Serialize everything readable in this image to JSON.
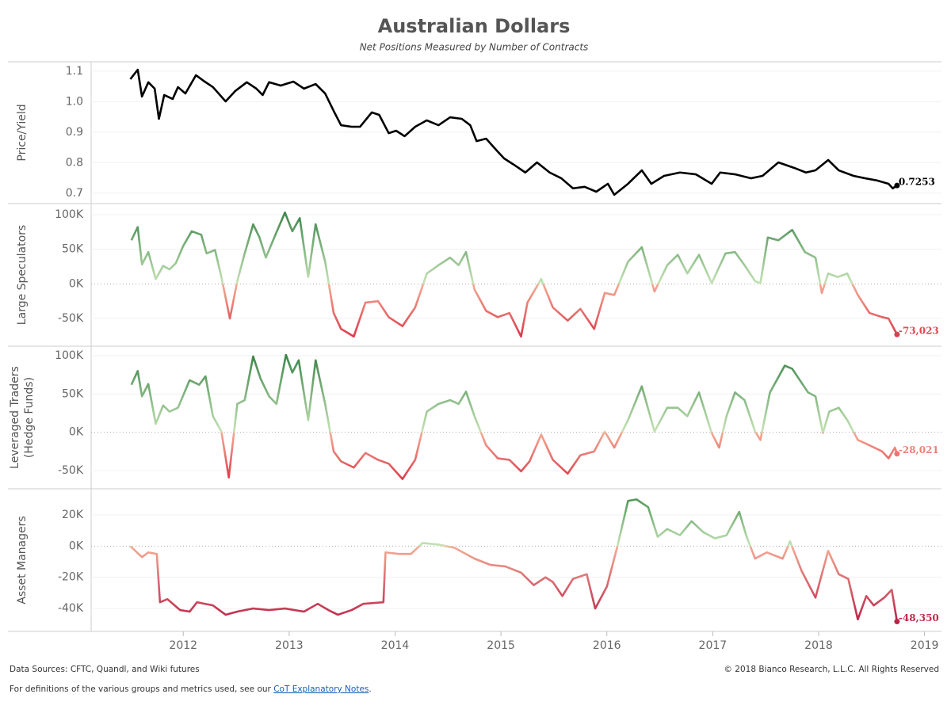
{
  "title": "Australian Dollars",
  "subtitle": "Net Positions Measured by Number of Contracts",
  "chart_data": [
    {
      "type": "line",
      "y_label": "Price/Yield",
      "xlim": [
        2011.13,
        2019.16
      ],
      "ylim": [
        0.666,
        1.131
      ],
      "yticks": [
        0.7,
        0.8,
        0.9,
        {
          "value": 1,
          "label": "1.0"
        },
        1.1
      ],
      "x": [
        2011.5,
        2011.57,
        2011.61,
        2011.67,
        2011.73,
        2011.77,
        2011.82,
        2011.9,
        2011.95,
        2012.02,
        2012.12,
        2012.19,
        2012.28,
        2012.4,
        2012.49,
        2012.6,
        2012.69,
        2012.75,
        2012.81,
        2012.92,
        2013.04,
        2013.14,
        2013.25,
        2013.34,
        2013.42,
        2013.49,
        2013.59,
        2013.67,
        2013.78,
        2013.85,
        2013.94,
        2014.01,
        2014.09,
        2014.19,
        2014.3,
        2014.41,
        2014.52,
        2014.63,
        2014.71,
        2014.77,
        2014.86,
        2014.96,
        2015.03,
        2015.12,
        2015.23,
        2015.34,
        2015.46,
        2015.57,
        2015.68,
        2015.79,
        2015.9,
        2016.01,
        2016.07,
        2016.2,
        2016.33,
        2016.42,
        2016.54,
        2016.69,
        2016.84,
        2016.99,
        2017.07,
        2017.21,
        2017.36,
        2017.47,
        2017.62,
        2017.77,
        2017.88,
        2017.97,
        2018.09,
        2018.19,
        2018.33,
        2018.44,
        2018.55,
        2018.66,
        2018.7,
        2018.74
      ],
      "series": [
        {
          "color": "#000000",
          "values": [
            1.074,
            1.105,
            1.017,
            1.064,
            1.043,
            0.944,
            1.022,
            1.009,
            1.048,
            1.027,
            1.087,
            1.069,
            1.048,
            1.001,
            1.035,
            1.064,
            1.043,
            1.022,
            1.064,
            1.053,
            1.066,
            1.043,
            1.058,
            1.027,
            0.97,
            0.923,
            0.918,
            0.918,
            0.965,
            0.957,
            0.897,
            0.905,
            0.887,
            0.918,
            0.939,
            0.923,
            0.949,
            0.944,
            0.923,
            0.871,
            0.879,
            0.84,
            0.814,
            0.794,
            0.768,
            0.801,
            0.768,
            0.749,
            0.716,
            0.721,
            0.705,
            0.731,
            0.695,
            0.731,
            0.775,
            0.731,
            0.757,
            0.768,
            0.762,
            0.731,
            0.768,
            0.762,
            0.749,
            0.757,
            0.801,
            0.783,
            0.768,
            0.775,
            0.809,
            0.775,
            0.757,
            0.749,
            0.742,
            0.731,
            0.716,
            0.7253
          ],
          "value_labels": [
            null,
            null,
            null,
            null,
            null,
            null,
            null,
            null,
            null,
            null,
            null,
            null,
            null,
            null,
            null,
            null,
            null,
            null,
            null,
            null,
            null,
            null,
            null,
            null,
            null,
            null,
            null,
            null,
            null,
            null,
            null,
            null,
            null,
            null,
            null,
            null,
            null,
            null,
            null,
            null,
            null,
            null,
            null,
            null,
            null,
            null,
            null,
            null,
            null,
            null,
            null,
            null,
            null,
            null,
            null,
            null,
            null,
            null,
            null,
            null,
            null,
            null,
            null,
            null,
            null,
            null,
            null,
            null,
            null,
            null,
            null,
            null,
            null,
            null,
            null,
            "0.7253"
          ]
        }
      ]
    },
    {
      "type": "line",
      "y_label": "Large Speculators",
      "xlim": [
        2011.13,
        2019.16
      ],
      "ylim": [
        -90000,
        116000
      ],
      "yticks": [
        {
          "value": -50000,
          "label": "-50K"
        },
        {
          "value": 0,
          "label": "0K"
        },
        {
          "value": 50000,
          "label": "50K"
        },
        {
          "value": 100000,
          "label": "100K"
        }
      ],
      "x": [
        2011.51,
        2011.57,
        2011.61,
        2011.67,
        2011.74,
        2011.81,
        2011.87,
        2011.93,
        2012.0,
        2012.08,
        2012.17,
        2012.22,
        2012.3,
        2012.36,
        2012.44,
        2012.51,
        2012.58,
        2012.66,
        2012.72,
        2012.78,
        2012.87,
        2012.96,
        2013.03,
        2013.1,
        2013.18,
        2013.25,
        2013.34,
        2013.42,
        2013.49,
        2013.61,
        2013.72,
        2013.84,
        2013.94,
        2014.07,
        2014.19,
        2014.3,
        2014.41,
        2014.52,
        2014.6,
        2014.67,
        2014.75,
        2014.86,
        2014.97,
        2015.08,
        2015.19,
        2015.25,
        2015.38,
        2015.49,
        2015.63,
        2015.75,
        2015.88,
        2015.98,
        2016.07,
        2016.2,
        2016.33,
        2016.45,
        2016.57,
        2016.67,
        2016.76,
        2016.87,
        2016.99,
        2017.12,
        2017.21,
        2017.3,
        2017.4,
        2017.45,
        2017.52,
        2017.62,
        2017.75,
        2017.87,
        2017.97,
        2018.03,
        2018.09,
        2018.18,
        2018.27,
        2018.37,
        2018.48,
        2018.6,
        2018.66,
        2018.74
      ],
      "series": [
        {
          "colors": [
            "#2b7a3b",
            "#c5e3b5",
            "#f4ab94",
            "#d7263d"
          ],
          "values": [
            63000,
            82000,
            28000,
            46000,
            7000,
            26000,
            21000,
            30000,
            55000,
            76000,
            71000,
            44000,
            49000,
            10000,
            -50000,
            4000,
            44000,
            86000,
            67000,
            38000,
            71000,
            103000,
            76000,
            95000,
            10000,
            86000,
            32000,
            -42000,
            -65000,
            -76000,
            -27000,
            -25000,
            -48000,
            -61000,
            -34000,
            15000,
            27000,
            38000,
            27000,
            46000,
            -8000,
            -39000,
            -48000,
            -42000,
            -76000,
            -27000,
            7000,
            -34000,
            -53000,
            -36000,
            -65000,
            -13000,
            -16000,
            32000,
            53000,
            -11000,
            27000,
            42000,
            15000,
            42000,
            1000,
            44000,
            46000,
            27000,
            4000,
            1000,
            67000,
            63000,
            78000,
            46000,
            38000,
            -13000,
            15000,
            10000,
            15000,
            -16000,
            -42000,
            -48000,
            -50000,
            -73023
          ],
          "value_labels": [
            null,
            null,
            null,
            null,
            null,
            null,
            null,
            null,
            null,
            null,
            null,
            null,
            null,
            null,
            null,
            null,
            null,
            null,
            null,
            null,
            null,
            null,
            null,
            null,
            null,
            null,
            null,
            null,
            null,
            null,
            null,
            null,
            null,
            null,
            null,
            null,
            null,
            null,
            null,
            null,
            null,
            null,
            null,
            null,
            null,
            null,
            null,
            null,
            null,
            null,
            null,
            null,
            null,
            null,
            null,
            null,
            null,
            null,
            null,
            null,
            null,
            null,
            null,
            null,
            null,
            null,
            null,
            null,
            null,
            null,
            null,
            null,
            null,
            null,
            null,
            null,
            null,
            null,
            null,
            "-73,023"
          ]
        }
      ]
    },
    {
      "type": "line",
      "y_label": [
        "Leveraged Traders",
        "(Hedge Funds)"
      ],
      "xlim": [
        2011.13,
        2019.16
      ],
      "ylim": [
        -73800,
        112400
      ],
      "yticks": [
        {
          "value": -50000,
          "label": "-50K"
        },
        {
          "value": 0,
          "label": "0K"
        },
        {
          "value": 50000,
          "label": "50K"
        },
        {
          "value": 100000,
          "label": "100K"
        }
      ],
      "x": [
        2011.51,
        2011.57,
        2011.61,
        2011.67,
        2011.74,
        2011.81,
        2011.87,
        2011.95,
        2012.06,
        2012.15,
        2012.21,
        2012.28,
        2012.36,
        2012.43,
        2012.51,
        2012.58,
        2012.66,
        2012.73,
        2012.81,
        2012.88,
        2012.97,
        2013.03,
        2013.09,
        2013.18,
        2013.25,
        2013.34,
        2013.42,
        2013.49,
        2013.61,
        2013.72,
        2013.84,
        2013.94,
        2014.07,
        2014.19,
        2014.3,
        2014.41,
        2014.52,
        2014.6,
        2014.67,
        2014.75,
        2014.86,
        2014.97,
        2015.08,
        2015.19,
        2015.27,
        2015.38,
        2015.49,
        2015.63,
        2015.75,
        2015.88,
        2015.98,
        2016.07,
        2016.2,
        2016.33,
        2016.45,
        2016.57,
        2016.67,
        2016.76,
        2016.87,
        2016.99,
        2017.06,
        2017.13,
        2017.21,
        2017.3,
        2017.4,
        2017.45,
        2017.54,
        2017.68,
        2017.75,
        2017.9,
        2017.97,
        2018.04,
        2018.1,
        2018.19,
        2018.27,
        2018.37,
        2018.48,
        2018.6,
        2018.66,
        2018.72,
        2018.74
      ],
      "series": [
        {
          "colors": [
            "#2b7a3b",
            "#c5e3b5",
            "#f4ab94",
            "#d7263d"
          ],
          "values": [
            62000,
            80000,
            47000,
            63000,
            11000,
            35000,
            27000,
            32000,
            68000,
            62000,
            73000,
            21000,
            1000,
            -59000,
            37000,
            42000,
            99000,
            70000,
            47000,
            37000,
            101000,
            78000,
            94000,
            16000,
            94000,
            37000,
            -25000,
            -38000,
            -46000,
            -27000,
            -36000,
            -41000,
            -61000,
            -36000,
            27000,
            37000,
            42000,
            37000,
            53000,
            21000,
            -17000,
            -34000,
            -36000,
            -51000,
            -38000,
            -3000,
            -36000,
            -54000,
            -30000,
            -25000,
            1000,
            -20000,
            16000,
            60000,
            1000,
            32000,
            32000,
            21000,
            52000,
            -1000,
            -20000,
            21000,
            52000,
            42000,
            1000,
            -10000,
            52000,
            87000,
            83000,
            52000,
            47000,
            -1000,
            27000,
            32000,
            16000,
            -10000,
            -17000,
            -25000,
            -34000,
            -20000,
            -28021
          ],
          "value_labels": [
            null,
            null,
            null,
            null,
            null,
            null,
            null,
            null,
            null,
            null,
            null,
            null,
            null,
            null,
            null,
            null,
            null,
            null,
            null,
            null,
            null,
            null,
            null,
            null,
            null,
            null,
            null,
            null,
            null,
            null,
            null,
            null,
            null,
            null,
            null,
            null,
            null,
            null,
            null,
            null,
            null,
            null,
            null,
            null,
            null,
            null,
            null,
            null,
            null,
            null,
            null,
            null,
            null,
            null,
            null,
            null,
            null,
            null,
            null,
            null,
            null,
            null,
            null,
            null,
            null,
            null,
            null,
            null,
            null,
            null,
            null,
            null,
            null,
            null,
            null,
            null,
            null,
            null,
            null,
            null,
            "-28,021"
          ]
        }
      ]
    },
    {
      "type": "line",
      "y_label": "Asset Managers",
      "xlim": [
        2011.13,
        2019.16
      ],
      "ylim": [
        -54700,
        36800
      ],
      "xticks": [
        2012,
        2013,
        2014,
        2015,
        2016,
        2017,
        2018,
        2019
      ],
      "yticks": [
        {
          "value": -40000,
          "label": "-40K"
        },
        {
          "value": -20000,
          "label": "-20K"
        },
        {
          "value": 0,
          "label": "0K"
        },
        {
          "value": 20000,
          "label": "20K"
        }
      ],
      "x": [
        2011.5,
        2011.61,
        2011.67,
        2011.75,
        2011.78,
        2011.85,
        2011.97,
        2012.06,
        2012.13,
        2012.28,
        2012.4,
        2012.51,
        2012.66,
        2012.81,
        2012.96,
        2013.14,
        2013.27,
        2013.37,
        2013.46,
        2013.59,
        2013.7,
        2013.89,
        2013.91,
        2014.04,
        2014.15,
        2014.26,
        2014.41,
        2014.56,
        2014.75,
        2014.9,
        2015.04,
        2015.19,
        2015.31,
        2015.42,
        2015.49,
        2015.58,
        2015.68,
        2015.81,
        2015.89,
        2016.0,
        2016.1,
        2016.2,
        2016.28,
        2016.39,
        2016.48,
        2016.57,
        2016.69,
        2016.8,
        2016.91,
        2017.02,
        2017.13,
        2017.25,
        2017.32,
        2017.4,
        2017.51,
        2017.66,
        2017.73,
        2017.84,
        2017.97,
        2018.09,
        2018.19,
        2018.28,
        2018.37,
        2018.45,
        2018.52,
        2018.62,
        2018.69,
        2018.74
      ],
      "series": [
        {
          "colors": [
            "#3a8a46",
            "#c5e3b5",
            "#f4ab94",
            "#b5123f"
          ],
          "values": [
            0,
            -7000,
            -4000,
            -5000,
            -36000,
            -34000,
            -41000,
            -42000,
            -36000,
            -38000,
            -44000,
            -42000,
            -40000,
            -41000,
            -40000,
            -42000,
            -37000,
            -41000,
            -44000,
            -41000,
            -37000,
            -36000,
            -4000,
            -5000,
            -5000,
            2000,
            1000,
            -1000,
            -8000,
            -12000,
            -13000,
            -17000,
            -25000,
            -20000,
            -23000,
            -32000,
            -21000,
            -18000,
            -40000,
            -26000,
            0,
            29000,
            30000,
            25000,
            6000,
            11000,
            7000,
            16000,
            9000,
            5000,
            7000,
            22000,
            6000,
            -8000,
            -4000,
            -8000,
            3000,
            -16000,
            -33000,
            -3000,
            -18000,
            -21000,
            -47000,
            -32000,
            -38000,
            -33000,
            -28000,
            -48350
          ],
          "value_labels": [
            null,
            null,
            null,
            null,
            null,
            null,
            null,
            null,
            null,
            null,
            null,
            null,
            null,
            null,
            null,
            null,
            null,
            null,
            null,
            null,
            null,
            null,
            null,
            null,
            null,
            null,
            null,
            null,
            null,
            null,
            null,
            null,
            null,
            null,
            null,
            null,
            null,
            null,
            null,
            null,
            null,
            null,
            null,
            null,
            null,
            null,
            null,
            null,
            null,
            null,
            null,
            null,
            null,
            null,
            null,
            null,
            null,
            null,
            null,
            null,
            null,
            null,
            null,
            null,
            null,
            null,
            null,
            "-48,350"
          ]
        }
      ]
    }
  ],
  "footer": {
    "sources": "Data Sources: CFTC, Quandl, and Wiki futures",
    "copyright": "© 2018 Bianco Research, L.L.C. All Rights Reserved",
    "definitions_prefix": "For definitions of the various groups and metrics used, see our",
    "definitions_link": "CoT Explanatory Notes",
    "definitions_suffix": "."
  }
}
